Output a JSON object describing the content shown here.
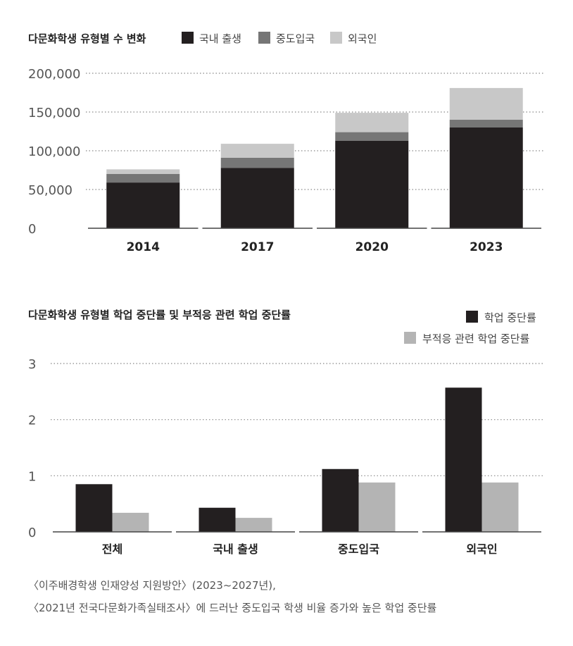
{
  "colors": {
    "domestic": "#231f20",
    "midentry": "#767676",
    "foreign": "#c8c8c8",
    "dropout": "#231f20",
    "maladapt": "#b4b4b4"
  },
  "chart_data": [
    {
      "type": "bar",
      "stacked": true,
      "title": "다문화학생 유형별 수 변화",
      "categories": [
        "2014",
        "2017",
        "2020",
        "2023"
      ],
      "series": [
        {
          "name": "국내 출생",
          "values": [
            59000,
            78000,
            113000,
            130000
          ]
        },
        {
          "name": "중도입국",
          "values": [
            11000,
            13000,
            11000,
            10000
          ]
        },
        {
          "name": "외국인",
          "values": [
            6000,
            18000,
            25000,
            41000
          ]
        }
      ],
      "ylim": [
        0,
        200000
      ],
      "yticks": [
        "0",
        "50,000",
        "100,000",
        "150,000",
        "200,000"
      ],
      "grid": true,
      "legend": "top"
    },
    {
      "type": "bar",
      "title": "다문화학생 유형별 학업 중단률 및 부적응 관련 학업 중단률",
      "categories": [
        "전체",
        "국내 출생",
        "중도입국",
        "외국인"
      ],
      "series": [
        {
          "name": "학업 중단률",
          "values": [
            0.85,
            0.43,
            1.12,
            2.57
          ]
        },
        {
          "name": "부적응 관련 학업 중단률",
          "values": [
            0.34,
            0.25,
            0.88,
            0.88
          ]
        }
      ],
      "ylim": [
        0,
        3
      ],
      "yticks": [
        "0",
        "1",
        "2",
        "3"
      ],
      "grid": true,
      "legend": "top-right"
    }
  ],
  "caption": {
    "line1": "〈이주배경학생 인재양성 지원방안〉(2023~2027년),",
    "line2": "〈2021년 전국다문화가족실태조사〉에 드러난 중도입국 학생 비율 증가와 높은 학업 중단률"
  }
}
